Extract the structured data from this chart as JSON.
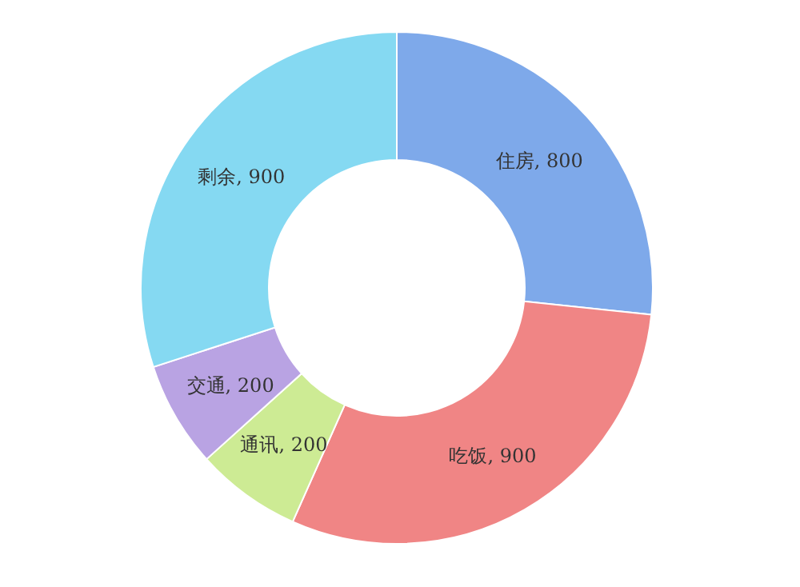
{
  "chart_data": {
    "type": "donut",
    "categories": [
      "住房",
      "吃饭",
      "通讯",
      "交通",
      "剩余"
    ],
    "values": [
      800,
      900,
      200,
      200,
      900
    ],
    "value_labels": [
      ", 800",
      ", 900",
      ", 200",
      ", 200",
      ", 900"
    ],
    "colors": [
      "#7ea9ea",
      "#f08585",
      "#cdeb94",
      "#b9a3e3",
      "#85d9f2"
    ]
  }
}
